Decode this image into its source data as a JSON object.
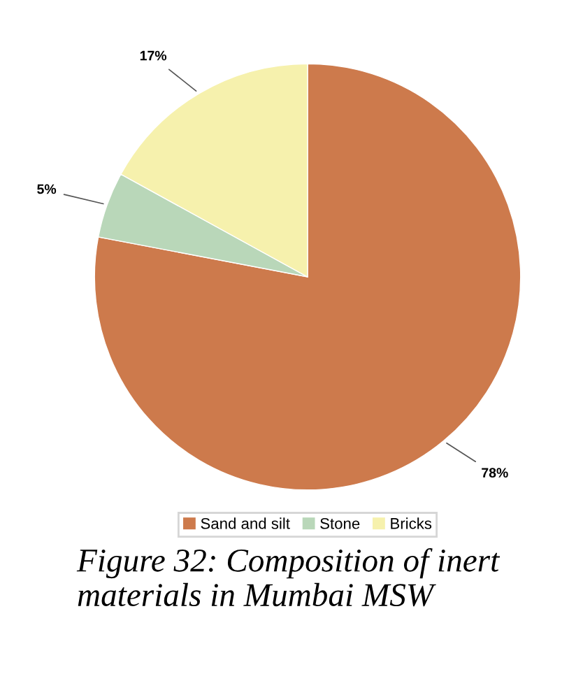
{
  "chart_data": {
    "type": "pie",
    "categories": [
      "Sand and silt",
      "Stone",
      "Bricks"
    ],
    "values": [
      78,
      5,
      17
    ],
    "value_labels": [
      "78%",
      "5%",
      "17%"
    ],
    "colors": [
      "#cd7a4c",
      "#b9d7b9",
      "#f6f1ad"
    ],
    "legend": "bottom",
    "annotations": [
      "Figure 32: Composition of inert materials in Mumbai MSW"
    ]
  }
}
